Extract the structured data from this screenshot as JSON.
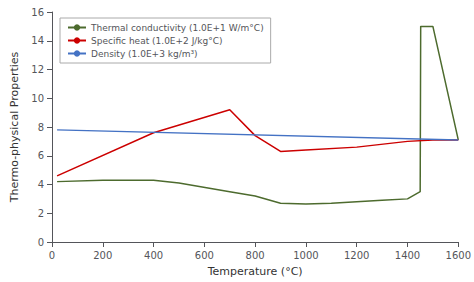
{
  "chart_data": {
    "type": "line",
    "xlabel": "Temperature (°C)",
    "ylabel": "Thermo-physical Properties",
    "xlim": [
      0,
      1600
    ],
    "ylim": [
      0,
      16
    ],
    "xticks": [
      0,
      200,
      400,
      600,
      800,
      1000,
      1200,
      1400,
      1600
    ],
    "yticks": [
      0,
      2,
      4,
      6,
      8,
      10,
      12,
      14,
      16
    ],
    "grid": false,
    "legend": "upper left",
    "series": [
      {
        "name": "Thermal conductivity (1.0E+1 W/m°C)",
        "color": "#4d6b2e",
        "x": [
          20,
          200,
          400,
          500,
          700,
          800,
          900,
          1000,
          1100,
          1200,
          1300,
          1400,
          1450,
          1452,
          1500,
          1600
        ],
        "values": [
          4.2,
          4.3,
          4.3,
          4.1,
          3.5,
          3.2,
          2.7,
          2.65,
          2.7,
          2.8,
          2.9,
          3.0,
          3.5,
          15.0,
          15.0,
          7.1
        ]
      },
      {
        "name": "Specific heat (1.0E+2 J/kg°C)",
        "color": "#cc0000",
        "x": [
          20,
          400,
          700,
          800,
          900,
          1000,
          1200,
          1400,
          1500,
          1600
        ],
        "values": [
          4.6,
          7.6,
          9.2,
          7.4,
          6.3,
          6.4,
          6.6,
          7.0,
          7.1,
          7.1
        ]
      },
      {
        "name": "Density (1.0E+3 kg/m³)",
        "color": "#4472c4",
        "x": [
          20,
          1600
        ],
        "values": [
          7.8,
          7.1
        ]
      }
    ]
  }
}
